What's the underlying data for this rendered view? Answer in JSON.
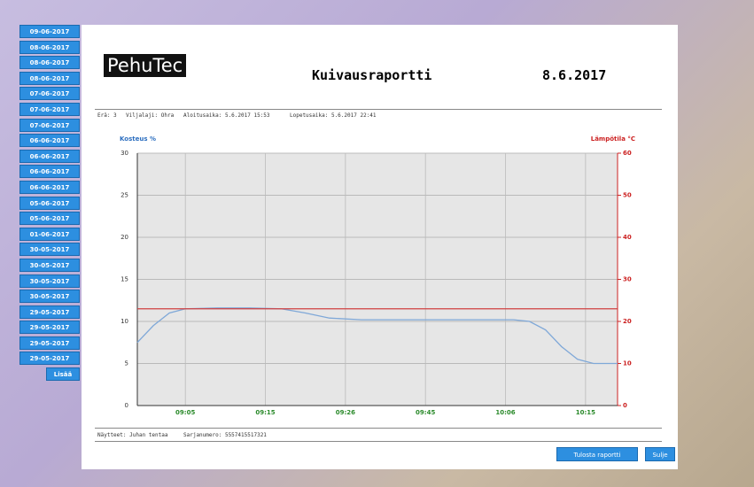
{
  "sidebar": {
    "dates": [
      "09-06-2017",
      "08-06-2017",
      "08-06-2017",
      "08-06-2017",
      "07-06-2017",
      "07-06-2017",
      "07-06-2017",
      "06-06-2017",
      "06-06-2017",
      "06-06-2017",
      "06-06-2017",
      "05-06-2017",
      "05-06-2017",
      "01-06-2017",
      "30-05-2017",
      "30-05-2017",
      "30-05-2017",
      "30-05-2017",
      "29-05-2017",
      "29-05-2017",
      "29-05-2017",
      "29-05-2017"
    ],
    "more": "Lisää"
  },
  "report": {
    "logo": "PehuTec",
    "title": "Kuivausraportti",
    "date": "8.6.2017",
    "info": [
      "Erä: 3",
      "Viljalaji: Ohra",
      "Aloitusaika: 5.6.2017 15:53",
      "Lopetusaika: 5.6.2017 22:41"
    ],
    "footer": [
      "Näytteet: Juhan tentaa",
      "Sarjanumero: 5557415517321"
    ]
  },
  "buttons": [
    "Tulosta raportti",
    "Sulje"
  ],
  "chart_data": {
    "type": "line",
    "y_label": "Kosteus %",
    "y2_label": "Lämpötila °C",
    "xlim": [
      0,
      60
    ],
    "xticks": [
      {
        "value": 6,
        "label": "09:05"
      },
      {
        "value": 16,
        "label": "09:15"
      },
      {
        "value": 26,
        "label": "09:26"
      },
      {
        "value": 36,
        "label": "09:45"
      },
      {
        "value": 46,
        "label": "10:06"
      },
      {
        "value": 56,
        "label": "10:15"
      }
    ],
    "ylim": [
      0,
      30
    ],
    "yticks": [
      0,
      5,
      10,
      15,
      20,
      25,
      30
    ],
    "y2lim": [
      0,
      60
    ],
    "y2ticks": [
      0,
      10,
      20,
      30,
      40,
      50,
      60
    ],
    "grid": true,
    "series": [
      {
        "color": "#7fa8d8",
        "x": [
          0,
          2,
          4,
          6,
          10,
          14,
          18,
          21,
          24,
          28,
          35,
          42,
          47,
          49,
          51,
          53,
          55,
          57,
          60
        ],
        "values": [
          7.5,
          9.5,
          11,
          11.5,
          11.6,
          11.6,
          11.5,
          11,
          10.4,
          10.2,
          10.2,
          10.2,
          10.2,
          10,
          9,
          7,
          5.5,
          5,
          5
        ]
      },
      {
        "color": "#d04040",
        "axis": "y2",
        "x": [
          0,
          60
        ],
        "values": [
          23,
          23
        ]
      }
    ]
  }
}
